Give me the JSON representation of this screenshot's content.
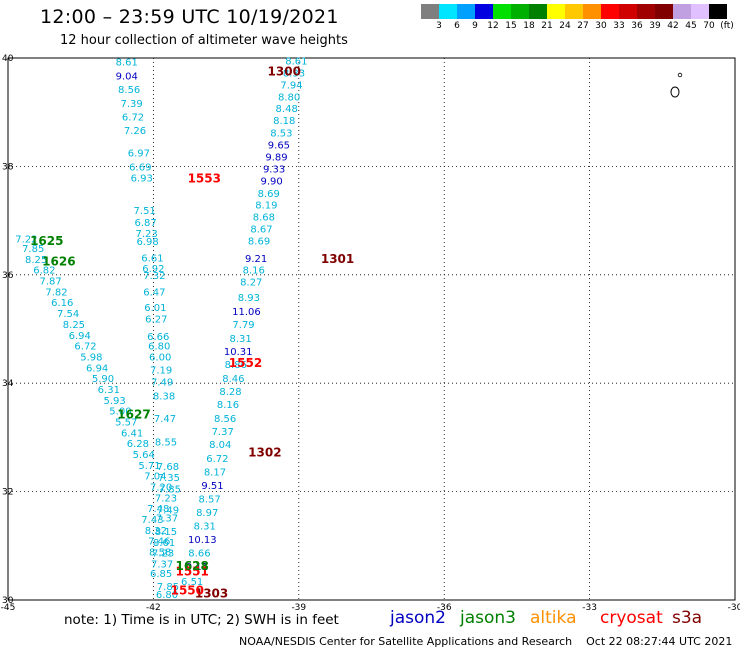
{
  "title": "12:00 – 23:59 UTC 10/19/2021",
  "subtitle": "12 hour collection of altimeter wave heights",
  "colorbar": {
    "colors": [
      "#7f7f7f",
      "#00e5ff",
      "#00a0ff",
      "#0000e0",
      "#00e000",
      "#00b000",
      "#008000",
      "#ffff00",
      "#ffc800",
      "#ff9000",
      "#ff0000",
      "#d00000",
      "#a00000",
      "#800000",
      "#c0a0e0",
      "#e0c0ff",
      "#000000"
    ],
    "labels": [
      "3",
      "6",
      "9",
      "12",
      "15",
      "18",
      "21",
      "24",
      "27",
      "30",
      "33",
      "36",
      "39",
      "42",
      "45",
      "70",
      "(ft)"
    ]
  },
  "map": {
    "lon_range": [
      -45,
      -30
    ],
    "lat_range": [
      30,
      40
    ],
    "lon_ticks": [
      "-45",
      "-42",
      "-39",
      "-36",
      "-33",
      "-30"
    ],
    "lat_ticks": [
      "40",
      "38",
      "36",
      "34",
      "32",
      "30"
    ]
  },
  "chart_data": {
    "type": "scatter",
    "x_axis": "longitude",
    "y_axis": "latitude",
    "track_labels": [
      {
        "text": "1300",
        "lon": -39.3,
        "lat": 39.68,
        "color": "#800000"
      },
      {
        "text": "1301",
        "lon": -38.2,
        "lat": 36.22,
        "color": "#800000"
      },
      {
        "text": "1302",
        "lon": -39.7,
        "lat": 32.65,
        "color": "#800000"
      },
      {
        "text": "1303",
        "lon": -40.8,
        "lat": 30.05,
        "color": "#800000"
      },
      {
        "text": "1550",
        "lon": -41.3,
        "lat": 30.1,
        "color": "#ff0000"
      },
      {
        "text": "1551",
        "lon": -41.2,
        "lat": 30.45,
        "color": "#ff0000"
      },
      {
        "text": "1552",
        "lon": -40.1,
        "lat": 34.3,
        "color": "#ff0000"
      },
      {
        "text": "1553",
        "lon": -40.95,
        "lat": 37.7,
        "color": "#ff0000"
      },
      {
        "text": "1625",
        "lon": -44.2,
        "lat": 36.55,
        "color": "#008000"
      },
      {
        "text": "1626",
        "lon": -43.95,
        "lat": 36.17,
        "color": "#008000"
      },
      {
        "text": "1627",
        "lon": -42.4,
        "lat": 33.35,
        "color": "#008000"
      },
      {
        "text": "1628",
        "lon": -41.2,
        "lat": 30.55,
        "color": "#008000"
      }
    ],
    "points": [
      {
        "lon": -39.05,
        "lat": 39.88,
        "v": "8.61",
        "c": "#00b4d8"
      },
      {
        "lon": -39.1,
        "lat": 39.66,
        "v": "8.33",
        "c": "#00b4d8"
      },
      {
        "lon": -39.15,
        "lat": 39.44,
        "v": "7.94",
        "c": "#00b4d8"
      },
      {
        "lon": -39.2,
        "lat": 39.22,
        "v": "8.80",
        "c": "#00b4d8"
      },
      {
        "lon": -39.25,
        "lat": 39.0,
        "v": "8.48",
        "c": "#00b4d8"
      },
      {
        "lon": -39.3,
        "lat": 38.78,
        "v": "8.18",
        "c": "#00b4d8"
      },
      {
        "lon": -39.36,
        "lat": 38.55,
        "v": "8.53",
        "c": "#00b4d8"
      },
      {
        "lon": -39.41,
        "lat": 38.33,
        "v": "9.65",
        "c": "#0000c0"
      },
      {
        "lon": -39.46,
        "lat": 38.11,
        "v": "9.89",
        "c": "#0000c0"
      },
      {
        "lon": -39.51,
        "lat": 37.89,
        "v": "9.33",
        "c": "#0000c0"
      },
      {
        "lon": -39.56,
        "lat": 37.67,
        "v": "9.90",
        "c": "#0000c0"
      },
      {
        "lon": -39.62,
        "lat": 37.44,
        "v": "8.69",
        "c": "#00b4d8"
      },
      {
        "lon": -39.67,
        "lat": 37.22,
        "v": "8.19",
        "c": "#00b4d8"
      },
      {
        "lon": -39.72,
        "lat": 37.0,
        "v": "8.68",
        "c": "#00b4d8"
      },
      {
        "lon": -39.77,
        "lat": 36.78,
        "v": "8.67",
        "c": "#00b4d8"
      },
      {
        "lon": -39.82,
        "lat": 36.56,
        "v": "8.69",
        "c": "#00b4d8"
      },
      {
        "lon": -39.88,
        "lat": 36.24,
        "v": "9.21",
        "c": "#0000c0"
      },
      {
        "lon": -39.93,
        "lat": 36.02,
        "v": "8.16",
        "c": "#00b4d8"
      },
      {
        "lon": -39.98,
        "lat": 35.8,
        "v": "8.27",
        "c": "#00b4d8"
      },
      {
        "lon": -40.03,
        "lat": 35.52,
        "v": "8.93",
        "c": "#00b4d8"
      },
      {
        "lon": -40.08,
        "lat": 35.26,
        "v": "11.06",
        "c": "#0000c0"
      },
      {
        "lon": -40.14,
        "lat": 35.02,
        "v": "7.79",
        "c": "#00b4d8"
      },
      {
        "lon": -40.2,
        "lat": 34.76,
        "v": "8.31",
        "c": "#00b4d8"
      },
      {
        "lon": -40.25,
        "lat": 34.52,
        "v": "10.31",
        "c": "#0000c0"
      },
      {
        "lon": -40.3,
        "lat": 34.28,
        "v": "8.86",
        "c": "#00b4d8"
      },
      {
        "lon": -40.35,
        "lat": 34.02,
        "v": "8.46",
        "c": "#00b4d8"
      },
      {
        "lon": -40.41,
        "lat": 33.78,
        "v": "8.28",
        "c": "#00b4d8"
      },
      {
        "lon": -40.46,
        "lat": 33.54,
        "v": "8.16",
        "c": "#00b4d8"
      },
      {
        "lon": -40.52,
        "lat": 33.28,
        "v": "8.56",
        "c": "#00b4d8"
      },
      {
        "lon": -40.57,
        "lat": 33.04,
        "v": "7.37",
        "c": "#00b4d8"
      },
      {
        "lon": -40.62,
        "lat": 32.8,
        "v": "8.04",
        "c": "#00b4d8"
      },
      {
        "lon": -40.68,
        "lat": 32.55,
        "v": "6.72",
        "c": "#00b4d8"
      },
      {
        "lon": -40.73,
        "lat": 32.3,
        "v": "8.17",
        "c": "#00b4d8"
      },
      {
        "lon": -40.78,
        "lat": 32.05,
        "v": "9.51",
        "c": "#0000c0"
      },
      {
        "lon": -40.84,
        "lat": 31.8,
        "v": "8.57",
        "c": "#00b4d8"
      },
      {
        "lon": -40.89,
        "lat": 31.55,
        "v": "8.97",
        "c": "#00b4d8"
      },
      {
        "lon": -40.94,
        "lat": 31.3,
        "v": "8.31",
        "c": "#00b4d8"
      },
      {
        "lon": -40.99,
        "lat": 31.05,
        "v": "10.13",
        "c": "#0000c0"
      },
      {
        "lon": -41.05,
        "lat": 30.8,
        "v": "8.66",
        "c": "#00b4d8"
      },
      {
        "lon": -41.1,
        "lat": 30.55,
        "v": "9.11",
        "c": "#000080"
      },
      {
        "lon": -41.2,
        "lat": 30.28,
        "v": "6.51",
        "c": "#00b4d8"
      },
      {
        "lon": -42.55,
        "lat": 39.86,
        "v": "8.61",
        "c": "#00b4d8"
      },
      {
        "lon": -42.55,
        "lat": 39.6,
        "v": "9.04",
        "c": "#0000c0"
      },
      {
        "lon": -42.5,
        "lat": 39.35,
        "v": "8.56",
        "c": "#00b4d8"
      },
      {
        "lon": -42.45,
        "lat": 39.1,
        "v": "7.39",
        "c": "#00b4d8"
      },
      {
        "lon": -42.42,
        "lat": 38.85,
        "v": "6.72",
        "c": "#00b4d8"
      },
      {
        "lon": -42.38,
        "lat": 38.6,
        "v": "7.26",
        "c": "#00b4d8"
      },
      {
        "lon": -42.3,
        "lat": 38.18,
        "v": "6.97",
        "c": "#00b4d8"
      },
      {
        "lon": -42.27,
        "lat": 37.92,
        "v": "6.69",
        "c": "#00b4d8"
      },
      {
        "lon": -42.24,
        "lat": 37.72,
        "v": "6.93",
        "c": "#00b4d8"
      },
      {
        "lon": -42.18,
        "lat": 37.12,
        "v": "7.51",
        "c": "#00b4d8"
      },
      {
        "lon": -42.16,
        "lat": 36.9,
        "v": "6.87",
        "c": "#00b4d8"
      },
      {
        "lon": -42.14,
        "lat": 36.7,
        "v": "7.23",
        "c": "#00b4d8"
      },
      {
        "lon": -42.12,
        "lat": 36.55,
        "v": "6.98",
        "c": "#00b4d8"
      },
      {
        "lon": -42.02,
        "lat": 36.25,
        "v": "6.61",
        "c": "#00b4d8"
      },
      {
        "lon": -42.0,
        "lat": 36.05,
        "v": "6.92",
        "c": "#00b4d8"
      },
      {
        "lon": -41.98,
        "lat": 35.92,
        "v": "7.32",
        "c": "#00b4d8"
      },
      {
        "lon": -41.98,
        "lat": 35.62,
        "v": "6.47",
        "c": "#00b4d8"
      },
      {
        "lon": -41.96,
        "lat": 35.33,
        "v": "6.01",
        "c": "#00b4d8"
      },
      {
        "lon": -41.94,
        "lat": 35.12,
        "v": "6.27",
        "c": "#00b4d8"
      },
      {
        "lon": -41.9,
        "lat": 34.8,
        "v": "6.66",
        "c": "#00b4d8"
      },
      {
        "lon": -41.88,
        "lat": 34.62,
        "v": "6.80",
        "c": "#00b4d8"
      },
      {
        "lon": -41.86,
        "lat": 34.42,
        "v": "6.00",
        "c": "#00b4d8"
      },
      {
        "lon": -41.84,
        "lat": 34.18,
        "v": "7.19",
        "c": "#00b4d8"
      },
      {
        "lon": -41.82,
        "lat": 33.96,
        "v": "7.49",
        "c": "#00b4d8"
      },
      {
        "lon": -41.78,
        "lat": 33.7,
        "v": "8.38",
        "c": "#00b4d8"
      },
      {
        "lon": -41.76,
        "lat": 33.28,
        "v": "7.47",
        "c": "#00b4d8"
      },
      {
        "lon": -41.74,
        "lat": 32.85,
        "v": "8.55",
        "c": "#00b4d8"
      },
      {
        "lon": -41.7,
        "lat": 32.4,
        "v": "7.68",
        "c": "#00b4d8"
      },
      {
        "lon": -41.68,
        "lat": 32.2,
        "v": "7.35",
        "c": "#00b4d8"
      },
      {
        "lon": -41.66,
        "lat": 31.98,
        "v": "7.85",
        "c": "#00b4d8"
      },
      {
        "lon": -41.7,
        "lat": 31.6,
        "v": "7.49",
        "c": "#00b4d8"
      },
      {
        "lon": -41.72,
        "lat": 31.45,
        "v": "7.37",
        "c": "#00b4d8"
      },
      {
        "lon": -41.74,
        "lat": 31.2,
        "v": "8.15",
        "c": "#00b4d8"
      },
      {
        "lon": -41.78,
        "lat": 31.0,
        "v": "8.61",
        "c": "#00b4d8"
      },
      {
        "lon": -41.8,
        "lat": 30.8,
        "v": "7.23",
        "c": "#00b4d8"
      },
      {
        "lon": -41.82,
        "lat": 30.6,
        "v": "7.37",
        "c": "#00b4d8"
      },
      {
        "lon": -41.84,
        "lat": 30.42,
        "v": "6.85",
        "c": "#00b4d8"
      },
      {
        "lon": -41.7,
        "lat": 30.18,
        "v": "7.85",
        "c": "#00b4d8"
      },
      {
        "lon": -41.72,
        "lat": 30.04,
        "v": "6.80",
        "c": "#00b4d8"
      },
      {
        "lon": -44.62,
        "lat": 36.6,
        "v": "7.22",
        "c": "#00b4d8"
      },
      {
        "lon": -44.48,
        "lat": 36.42,
        "v": "7.85",
        "c": "#00b4d8"
      },
      {
        "lon": -44.42,
        "lat": 36.22,
        "v": "8.25",
        "c": "#00b4d8"
      },
      {
        "lon": -44.25,
        "lat": 36.02,
        "v": "6.82",
        "c": "#00b4d8"
      },
      {
        "lon": -44.12,
        "lat": 35.82,
        "v": "7.87",
        "c": "#00b4d8"
      },
      {
        "lon": -44.0,
        "lat": 35.62,
        "v": "7.82",
        "c": "#00b4d8"
      },
      {
        "lon": -43.88,
        "lat": 35.42,
        "v": "6.16",
        "c": "#00b4d8"
      },
      {
        "lon": -43.76,
        "lat": 35.22,
        "v": "7.54",
        "c": "#00b4d8"
      },
      {
        "lon": -43.64,
        "lat": 35.02,
        "v": "8.25",
        "c": "#00b4d8"
      },
      {
        "lon": -43.52,
        "lat": 34.82,
        "v": "6.94",
        "c": "#00b4d8"
      },
      {
        "lon": -43.4,
        "lat": 34.62,
        "v": "6.72",
        "c": "#00b4d8"
      },
      {
        "lon": -43.28,
        "lat": 34.42,
        "v": "5.98",
        "c": "#00b4d8"
      },
      {
        "lon": -43.16,
        "lat": 34.22,
        "v": "6.94",
        "c": "#00b4d8"
      },
      {
        "lon": -43.04,
        "lat": 34.02,
        "v": "5.90",
        "c": "#00b4d8"
      },
      {
        "lon": -42.92,
        "lat": 33.82,
        "v": "6.31",
        "c": "#00b4d8"
      },
      {
        "lon": -42.8,
        "lat": 33.62,
        "v": "5.93",
        "c": "#00b4d8"
      },
      {
        "lon": -42.68,
        "lat": 33.42,
        "v": "5.00",
        "c": "#00b4d8"
      },
      {
        "lon": -42.56,
        "lat": 33.22,
        "v": "5.57",
        "c": "#00b4d8"
      },
      {
        "lon": -42.44,
        "lat": 33.02,
        "v": "6.41",
        "c": "#00b4d8"
      },
      {
        "lon": -42.32,
        "lat": 32.82,
        "v": "6.28",
        "c": "#00b4d8"
      },
      {
        "lon": -42.2,
        "lat": 32.62,
        "v": "5.64",
        "c": "#00b4d8"
      },
      {
        "lon": -42.08,
        "lat": 32.42,
        "v": "5.71",
        "c": "#00b4d8"
      },
      {
        "lon": -41.96,
        "lat": 32.22,
        "v": "7.04",
        "c": "#00b4d8"
      },
      {
        "lon": -41.84,
        "lat": 32.02,
        "v": "7.20",
        "c": "#00b4d8"
      },
      {
        "lon": -41.74,
        "lat": 31.82,
        "v": "7.23",
        "c": "#00b4d8"
      },
      {
        "lon": -41.9,
        "lat": 31.62,
        "v": "7.48",
        "c": "#00b4d8"
      },
      {
        "lon": -42.02,
        "lat": 31.42,
        "v": "7.43",
        "c": "#00b4d8"
      },
      {
        "lon": -41.95,
        "lat": 31.22,
        "v": "8.32",
        "c": "#00b4d8"
      },
      {
        "lon": -41.88,
        "lat": 31.02,
        "v": "7.46",
        "c": "#00b4d8"
      },
      {
        "lon": -41.86,
        "lat": 30.82,
        "v": "8.58",
        "c": "#00b4d8"
      }
    ]
  },
  "note": "note:  1) Time is in UTC;  2) SWH is in feet",
  "legend": [
    {
      "label": "jason2",
      "color": "#0000c0"
    },
    {
      "label": "jason3",
      "color": "#008000"
    },
    {
      "label": "altika",
      "color": "#ff9000"
    },
    {
      "label": "cryosat",
      "color": "#ff0000"
    },
    {
      "label": "s3a",
      "color": "#800000"
    }
  ],
  "credit": "NOAA/NESDIS Center for Satellite Applications and Research    Oct 22 08:27:44 UTC 2021"
}
